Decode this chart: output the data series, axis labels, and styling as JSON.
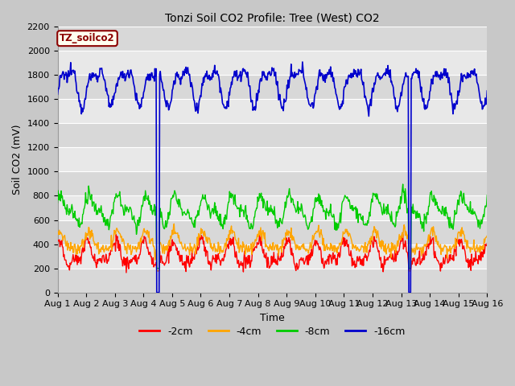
{
  "title": "Tonzi Soil CO2 Profile: Tree (West) CO2",
  "xlabel": "Time",
  "ylabel": "Soil CO2 (mV)",
  "ylim": [
    0,
    2200
  ],
  "yticks": [
    0,
    200,
    400,
    600,
    800,
    1000,
    1200,
    1400,
    1600,
    1800,
    2000,
    2200
  ],
  "xlim_days": [
    0,
    15
  ],
  "xtick_labels": [
    "Aug 1",
    "Aug 2",
    "Aug 3",
    "Aug 4",
    "Aug 5",
    "Aug 6",
    "Aug 7",
    "Aug 8",
    "Aug 9",
    "Aug 10",
    "Aug 11",
    "Aug 12",
    "Aug 13",
    "Aug 14",
    "Aug 15",
    "Aug 16"
  ],
  "legend_labels": [
    "-2cm",
    "-4cm",
    "-8cm",
    "-16cm"
  ],
  "line_colors": [
    "#ff0000",
    "#ffa500",
    "#00cc00",
    "#0000cc"
  ],
  "bg_color": "#e8e8e8",
  "band_color_dark": "#d8d8d8",
  "band_color_light": "#e8e8e8",
  "annotation_text": "TZ_soilco2",
  "annotation_color": "#8b0000",
  "annotation_bg": "#fffff0",
  "annotation_border": "#8b0000",
  "title_fontsize": 10,
  "axis_fontsize": 9,
  "tick_fontsize": 8
}
